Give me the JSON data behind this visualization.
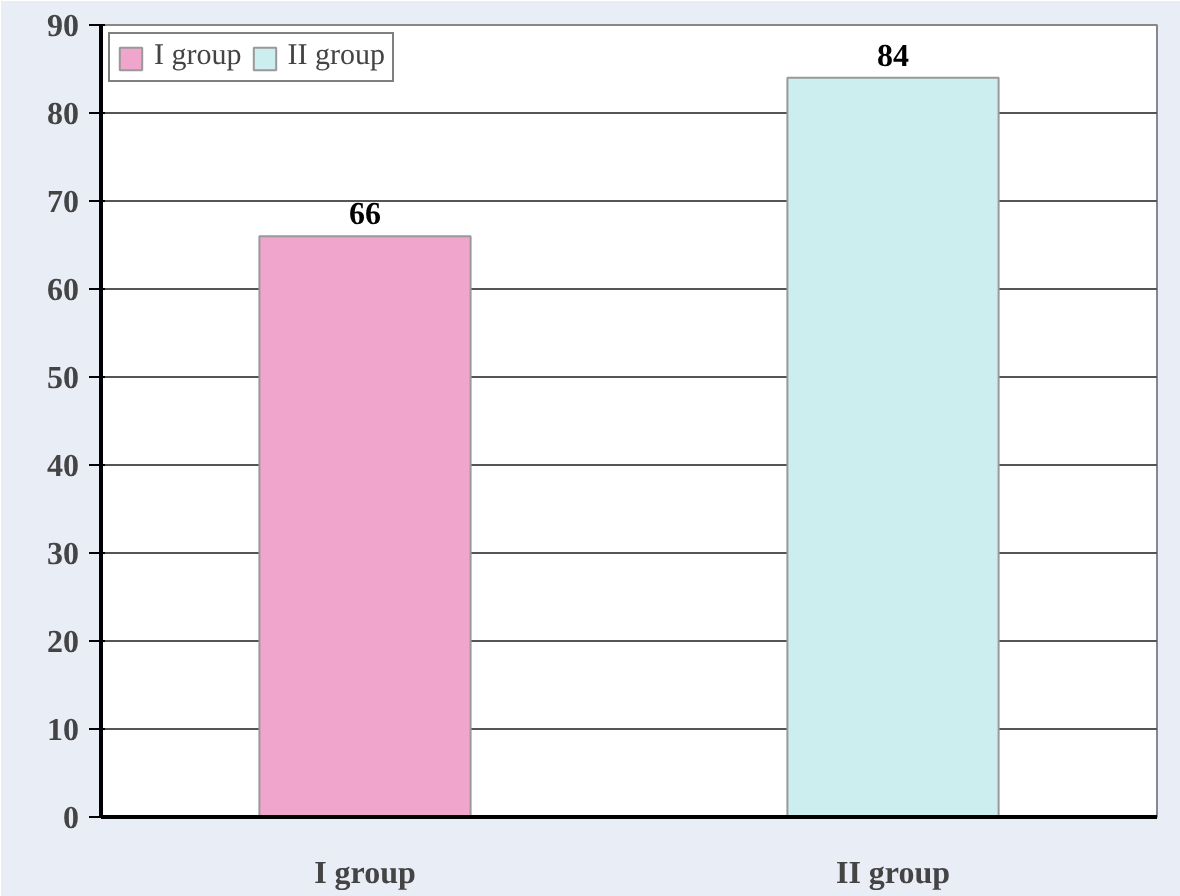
{
  "chart_data": {
    "type": "bar",
    "categories": [
      "I group",
      "II group"
    ],
    "series": [
      {
        "name": "I group",
        "color": "#f0a6cc",
        "values": [
          66,
          null
        ]
      },
      {
        "name": "II group",
        "color": "#cdeeee",
        "values": [
          null,
          84
        ]
      }
    ],
    "ylim": [
      0,
      90
    ],
    "yticks": [
      0,
      10,
      20,
      30,
      40,
      50,
      60,
      70,
      80,
      90
    ],
    "grid": "y",
    "legend": "top left",
    "data_labels": true
  }
}
